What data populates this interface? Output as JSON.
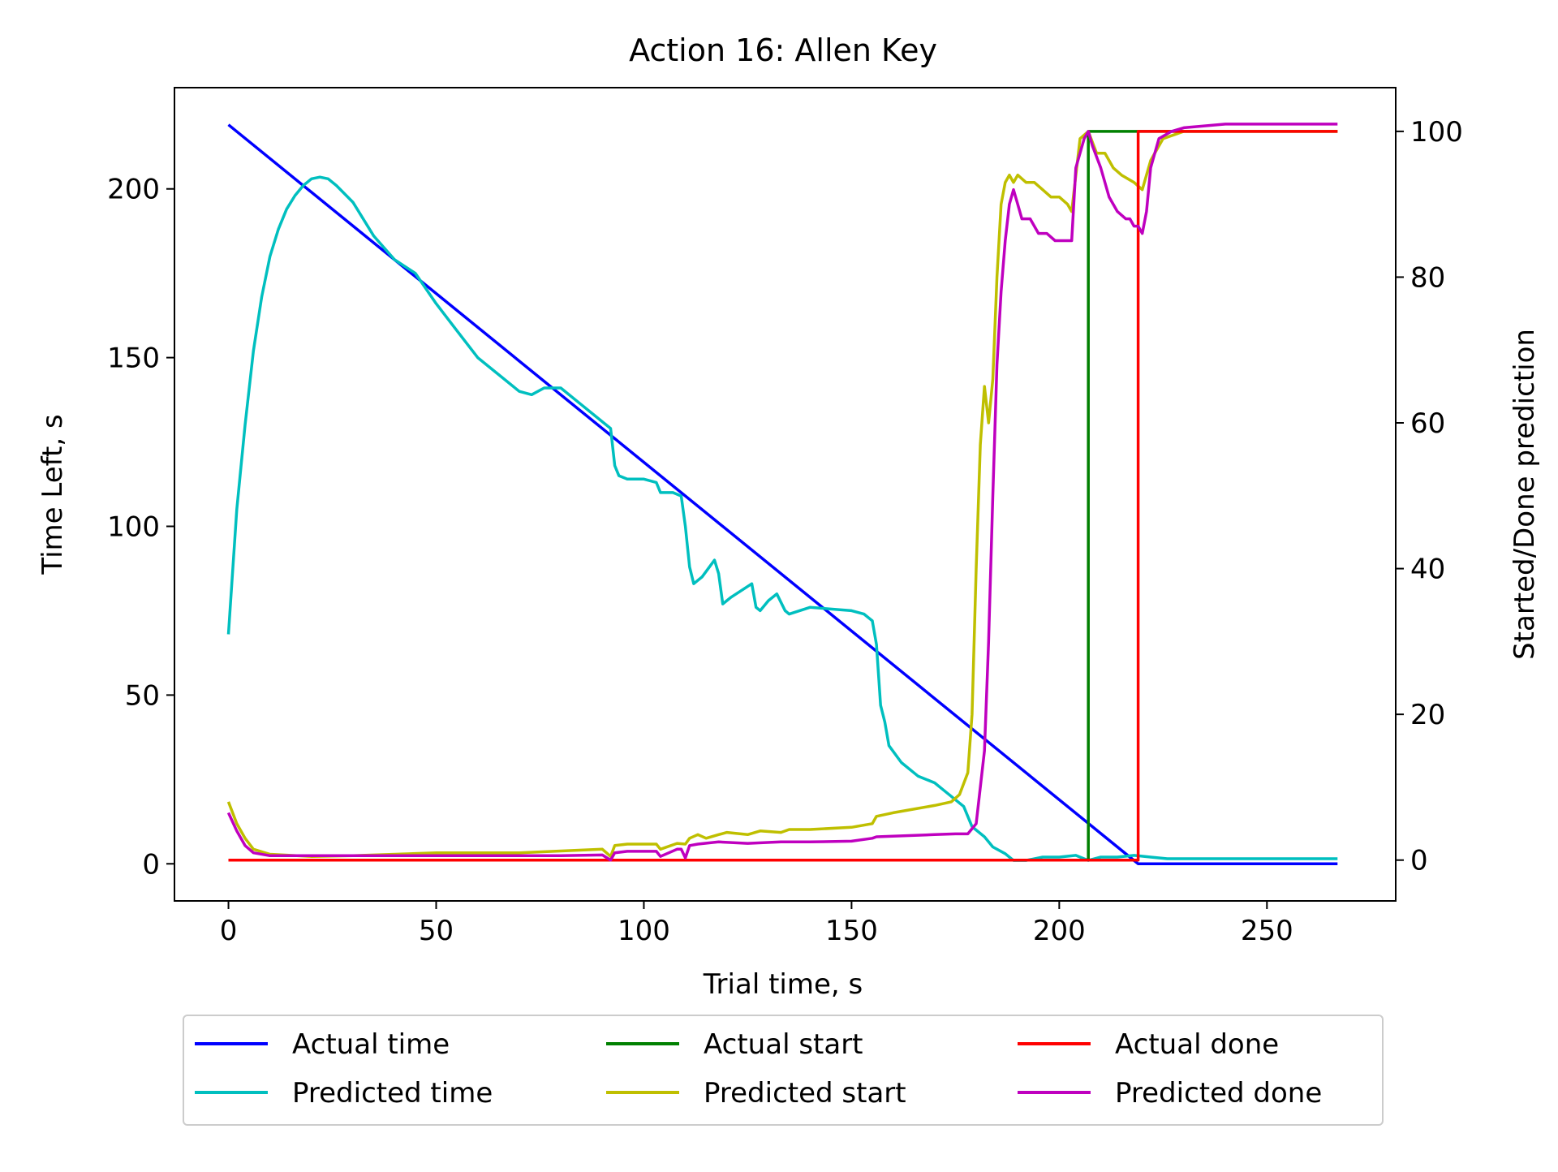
{
  "chart_data": {
    "type": "line",
    "title": "Action 16: Allen Key",
    "xlabel": "Trial time, s",
    "ylabel": "Time Left, s",
    "y2label": "Started/Done prediction",
    "xlim": [
      -13,
      281
    ],
    "ylim": [
      -11,
      230
    ],
    "y2lim": [
      -5.6,
      106
    ],
    "xticks": [
      0,
      50,
      100,
      150,
      200,
      250
    ],
    "yticks": [
      0,
      50,
      100,
      150,
      200
    ],
    "y2ticks": [
      0,
      20,
      40,
      60,
      80,
      100
    ],
    "grid": false,
    "legend": {
      "position": "bottom-center-below",
      "columns": 3,
      "entries": [
        "Actual time",
        "Actual start",
        "Actual done",
        "Predicted time",
        "Predicted start",
        "Predicted done"
      ]
    },
    "series": [
      {
        "name": "Actual time",
        "axis": "left",
        "color": "#0000ff",
        "points": [
          [
            0,
            219
          ],
          [
            219,
            0
          ],
          [
            267,
            0
          ]
        ]
      },
      {
        "name": "Predicted time",
        "axis": "left",
        "color": "#00bfbf",
        "points": [
          [
            0,
            68
          ],
          [
            2,
            105
          ],
          [
            4,
            130
          ],
          [
            6,
            152
          ],
          [
            8,
            168
          ],
          [
            10,
            180
          ],
          [
            12,
            188
          ],
          [
            14,
            194
          ],
          [
            16,
            198
          ],
          [
            18,
            201
          ],
          [
            20,
            203
          ],
          [
            22,
            203.5
          ],
          [
            24,
            203
          ],
          [
            26,
            201
          ],
          [
            30,
            196
          ],
          [
            35,
            186
          ],
          [
            40,
            179
          ],
          [
            45,
            175
          ],
          [
            50,
            166
          ],
          [
            55,
            158
          ],
          [
            60,
            150
          ],
          [
            65,
            145
          ],
          [
            70,
            140
          ],
          [
            73,
            139
          ],
          [
            76,
            141
          ],
          [
            80,
            141
          ],
          [
            85,
            136
          ],
          [
            90,
            131
          ],
          [
            92,
            129
          ],
          [
            93,
            118
          ],
          [
            94,
            115
          ],
          [
            96,
            114
          ],
          [
            100,
            114
          ],
          [
            103,
            113
          ],
          [
            104,
            110
          ],
          [
            107,
            110
          ],
          [
            109,
            109
          ],
          [
            110,
            100
          ],
          [
            111,
            88
          ],
          [
            112,
            83
          ],
          [
            114,
            85
          ],
          [
            117,
            90
          ],
          [
            118,
            86
          ],
          [
            119,
            77
          ],
          [
            121,
            79
          ],
          [
            126,
            83
          ],
          [
            127,
            76
          ],
          [
            128,
            75
          ],
          [
            130,
            78
          ],
          [
            132,
            80
          ],
          [
            134,
            75
          ],
          [
            135,
            74
          ],
          [
            140,
            76
          ],
          [
            150,
            75
          ],
          [
            153,
            74
          ],
          [
            155,
            72
          ],
          [
            156,
            65
          ],
          [
            157,
            47
          ],
          [
            158,
            42
          ],
          [
            159,
            35
          ],
          [
            162,
            30
          ],
          [
            166,
            26
          ],
          [
            170,
            24
          ],
          [
            172,
            22
          ],
          [
            175,
            19
          ],
          [
            177,
            17
          ],
          [
            179,
            11
          ],
          [
            182,
            8
          ],
          [
            184,
            5
          ],
          [
            187,
            3
          ],
          [
            189,
            1
          ],
          [
            192,
            1
          ],
          [
            196,
            2
          ],
          [
            200,
            2
          ],
          [
            204,
            2.5
          ],
          [
            207,
            1
          ],
          [
            210,
            2
          ],
          [
            214,
            2
          ],
          [
            218,
            2.5
          ],
          [
            222,
            2
          ],
          [
            226,
            1.5
          ],
          [
            230,
            1.5
          ],
          [
            240,
            1.5
          ],
          [
            250,
            1.5
          ],
          [
            260,
            1.5
          ],
          [
            267,
            1.5
          ]
        ]
      },
      {
        "name": "Actual start",
        "axis": "right",
        "color": "#008000",
        "points": [
          [
            0,
            0
          ],
          [
            207,
            0
          ],
          [
            207,
            100
          ],
          [
            267,
            100
          ]
        ]
      },
      {
        "name": "Predicted start",
        "axis": "right",
        "color": "#bfbf00",
        "points": [
          [
            0,
            8
          ],
          [
            2,
            5
          ],
          [
            4,
            3
          ],
          [
            6,
            1.5
          ],
          [
            10,
            0.8
          ],
          [
            20,
            0.5
          ],
          [
            30,
            0.6
          ],
          [
            50,
            1
          ],
          [
            70,
            1
          ],
          [
            90,
            1.5
          ],
          [
            92,
            0.5
          ],
          [
            93,
            2
          ],
          [
            96,
            2.2
          ],
          [
            103,
            2.2
          ],
          [
            104,
            1.5
          ],
          [
            108,
            2.3
          ],
          [
            110,
            2.2
          ],
          [
            111,
            3
          ],
          [
            113,
            3.5
          ],
          [
            115,
            3
          ],
          [
            118,
            3.5
          ],
          [
            120,
            3.8
          ],
          [
            125,
            3.5
          ],
          [
            128,
            4
          ],
          [
            133,
            3.8
          ],
          [
            135,
            4.2
          ],
          [
            140,
            4.2
          ],
          [
            150,
            4.5
          ],
          [
            155,
            5
          ],
          [
            156,
            6
          ],
          [
            160,
            6.5
          ],
          [
            165,
            7
          ],
          [
            170,
            7.5
          ],
          [
            174,
            8
          ],
          [
            176,
            9
          ],
          [
            178,
            12
          ],
          [
            179,
            20
          ],
          [
            180,
            40
          ],
          [
            181,
            57
          ],
          [
            182,
            65
          ],
          [
            183,
            60
          ],
          [
            184,
            66
          ],
          [
            185,
            80
          ],
          [
            186,
            90
          ],
          [
            187,
            93
          ],
          [
            188,
            94
          ],
          [
            189,
            93
          ],
          [
            190,
            94
          ],
          [
            192,
            93
          ],
          [
            194,
            93
          ],
          [
            196,
            92
          ],
          [
            198,
            91
          ],
          [
            200,
            91
          ],
          [
            202,
            90
          ],
          [
            203,
            89
          ],
          [
            205,
            99
          ],
          [
            207,
            100
          ],
          [
            209,
            97
          ],
          [
            211,
            97
          ],
          [
            213,
            95
          ],
          [
            215,
            94
          ],
          [
            218,
            93
          ],
          [
            220,
            92
          ],
          [
            222,
            96
          ],
          [
            225,
            99
          ],
          [
            230,
            100
          ],
          [
            240,
            100
          ],
          [
            250,
            100
          ],
          [
            260,
            100
          ],
          [
            267,
            100
          ]
        ]
      },
      {
        "name": "Actual done",
        "axis": "right",
        "color": "#ff0000",
        "points": [
          [
            0,
            0
          ],
          [
            219,
            0
          ],
          [
            219,
            100
          ],
          [
            267,
            100
          ]
        ]
      },
      {
        "name": "Predicted done",
        "axis": "right",
        "color": "#bf00bf",
        "points": [
          [
            0,
            6.5
          ],
          [
            2,
            4
          ],
          [
            4,
            2
          ],
          [
            6,
            1
          ],
          [
            10,
            0.6
          ],
          [
            20,
            0.6
          ],
          [
            40,
            0.6
          ],
          [
            60,
            0.6
          ],
          [
            80,
            0.6
          ],
          [
            90,
            0.7
          ],
          [
            92,
            0
          ],
          [
            93,
            1
          ],
          [
            96,
            1.2
          ],
          [
            103,
            1.2
          ],
          [
            104,
            0.5
          ],
          [
            108,
            1.5
          ],
          [
            109,
            1.5
          ],
          [
            110,
            0.3
          ],
          [
            111,
            2
          ],
          [
            113,
            2.2
          ],
          [
            118,
            2.5
          ],
          [
            125,
            2.3
          ],
          [
            133,
            2.5
          ],
          [
            140,
            2.5
          ],
          [
            150,
            2.6
          ],
          [
            155,
            3
          ],
          [
            156,
            3.2
          ],
          [
            170,
            3.5
          ],
          [
            175,
            3.6
          ],
          [
            178,
            3.6
          ],
          [
            180,
            5
          ],
          [
            182,
            15
          ],
          [
            183,
            30
          ],
          [
            184,
            50
          ],
          [
            185,
            68
          ],
          [
            186,
            78
          ],
          [
            187,
            85
          ],
          [
            188,
            90
          ],
          [
            189,
            92
          ],
          [
            190,
            90
          ],
          [
            191,
            88
          ],
          [
            193,
            88
          ],
          [
            195,
            86
          ],
          [
            197,
            86
          ],
          [
            199,
            85
          ],
          [
            201,
            85
          ],
          [
            203,
            85
          ],
          [
            204,
            95
          ],
          [
            206,
            99
          ],
          [
            207,
            100
          ],
          [
            208,
            98
          ],
          [
            210,
            95
          ],
          [
            212,
            91
          ],
          [
            214,
            89
          ],
          [
            216,
            88
          ],
          [
            217,
            88
          ],
          [
            218,
            87
          ],
          [
            219,
            87
          ],
          [
            220,
            86
          ],
          [
            221,
            89
          ],
          [
            222,
            95
          ],
          [
            224,
            99
          ],
          [
            227,
            100
          ],
          [
            230,
            100.5
          ],
          [
            240,
            101
          ],
          [
            250,
            101
          ],
          [
            260,
            101
          ],
          [
            267,
            101
          ]
        ]
      }
    ]
  }
}
